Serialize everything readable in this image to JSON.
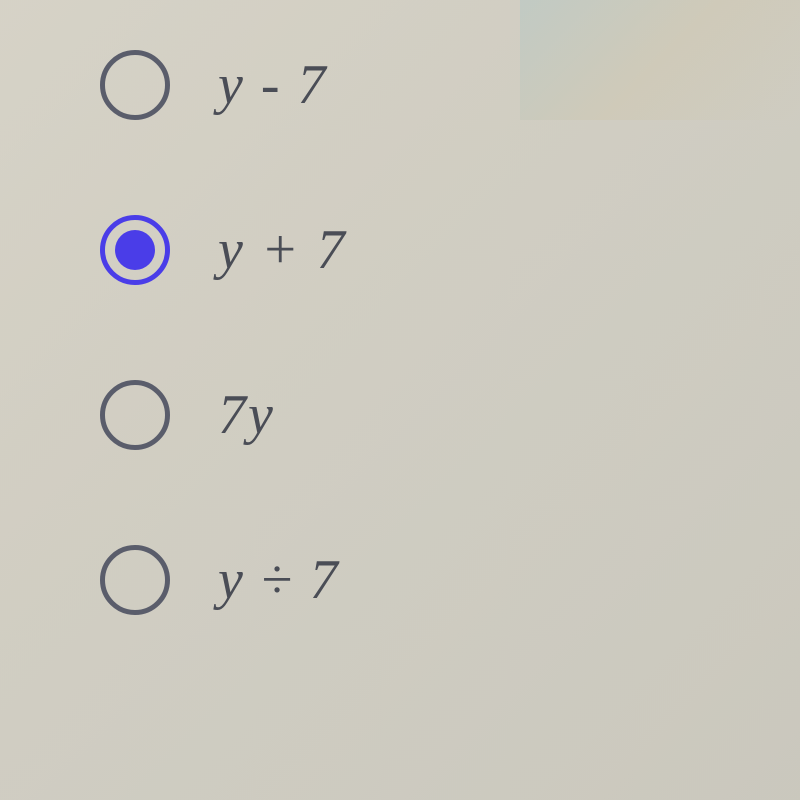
{
  "question": {
    "options": [
      {
        "id": "opt-a",
        "label": "y - 7",
        "selected": false
      },
      {
        "id": "opt-b",
        "label": "y + 7",
        "selected": true
      },
      {
        "id": "opt-c",
        "label": "7y",
        "selected": false
      },
      {
        "id": "opt-d",
        "label": "y ÷ 7",
        "selected": false
      }
    ]
  },
  "styling": {
    "radio_border_color": "#5a5d6b",
    "radio_selected_color": "#4a3de8",
    "label_color": "#4a4d56",
    "label_fontsize": 56,
    "background_color": "#d4d0c4"
  }
}
